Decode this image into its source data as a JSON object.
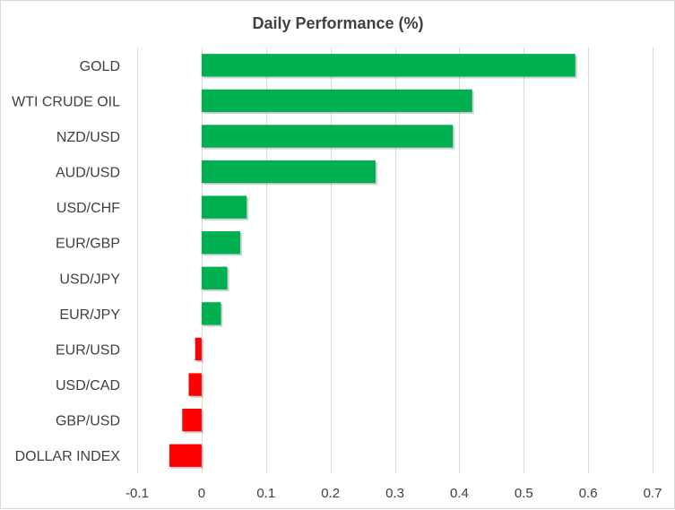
{
  "chart_data": {
    "type": "bar",
    "orientation": "horizontal",
    "title": "Daily Performance  (%)",
    "categories": [
      "GOLD",
      "WTI CRUDE OIL",
      "NZD/USD",
      "AUD/USD",
      "USD/CHF",
      "EUR/GBP",
      "USD/JPY",
      "EUR/JPY",
      "EUR/USD",
      "USD/CAD",
      "GBP/USD",
      "DOLLAR INDEX"
    ],
    "values": [
      0.58,
      0.42,
      0.39,
      0.27,
      0.07,
      0.06,
      0.04,
      0.03,
      -0.01,
      -0.02,
      -0.03,
      -0.05
    ],
    "xlim": [
      -0.1,
      0.7
    ],
    "xticks": [
      -0.1,
      0,
      0.1,
      0.2,
      0.3,
      0.4,
      0.5,
      0.6,
      0.7
    ],
    "xtick_labels": [
      "-0.1",
      "0",
      "0.1",
      "0.2",
      "0.3",
      "0.4",
      "0.5",
      "0.6",
      "0.7"
    ],
    "xlabel": "",
    "ylabel": "",
    "grid": "vertical",
    "legend": "none",
    "colors": {
      "positive": "#00b050",
      "negative": "#ff0000",
      "gridline": "#d9d9d9",
      "text": "#404040"
    }
  }
}
